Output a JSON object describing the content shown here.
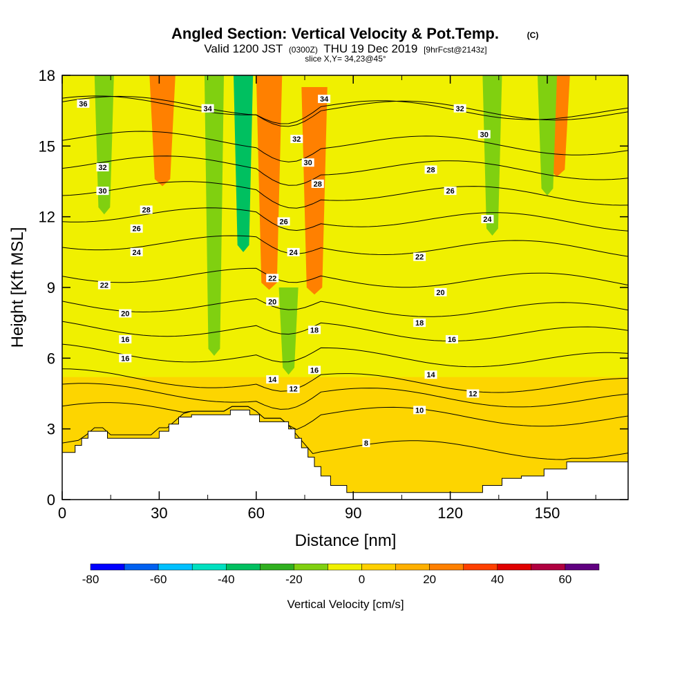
{
  "chart_data": {
    "type": "heatmap",
    "title": "Angled Section: Vertical Velocity & Pot.Temp.",
    "title_units": "(C)",
    "subtitle": {
      "prefix": "Valid 1200 JST",
      "utc": "(0300Z)",
      "date": "THU 19 Dec 2019",
      "forecast": "[9hrFcst@2143z]"
    },
    "slice_label": "slice X,Y= 34,23@45°",
    "xlabel": "Distance [nm]",
    "ylabel": "Height [Kft MSL]",
    "xlim": [
      0,
      175
    ],
    "ylim": [
      0,
      18
    ],
    "xticks": [
      0,
      30,
      60,
      90,
      120,
      150
    ],
    "yticks": [
      0,
      3,
      6,
      9,
      12,
      15,
      18
    ],
    "grid": false,
    "colorbar": {
      "label": "Vertical Velocity [cm/s]",
      "range": [
        -80,
        70
      ],
      "step": 10,
      "tick_values": [
        -80,
        -60,
        -40,
        -20,
        0,
        20,
        40,
        60
      ],
      "colors": [
        "#0000ff",
        "#0060f0",
        "#00c0ff",
        "#00e0c0",
        "#00c060",
        "#30b020",
        "#80d010",
        "#f0f000",
        "#ffd000",
        "#ffb000",
        "#ff8000",
        "#ff4000",
        "#e00000",
        "#b00040",
        "#600080"
      ]
    },
    "background_band": "0 to 10",
    "updraft_bands": [
      {
        "x": 31,
        "y_from": 13.6,
        "y_to": 18,
        "value": 25
      },
      {
        "x": 64,
        "y_from": 9.2,
        "y_to": 18,
        "value": 25
      },
      {
        "x": 78,
        "y_from": 9,
        "y_to": 17.5,
        "value": 20
      },
      {
        "x": 153,
        "y_from": 14,
        "y_to": 18,
        "value": 20
      }
    ],
    "downdraft_bands": [
      {
        "x": 13,
        "y_from": 12.4,
        "y_to": 18,
        "value": -15
      },
      {
        "x": 47,
        "y_from": 6.4,
        "y_to": 18,
        "value": -15
      },
      {
        "x": 56,
        "y_from": 10.8,
        "y_to": 18,
        "value": -35
      },
      {
        "x": 70,
        "y_from": 5.6,
        "y_to": 9,
        "value": -15
      },
      {
        "x": 133,
        "y_from": 11.5,
        "y_to": 18,
        "value": -15
      },
      {
        "x": 150,
        "y_from": 13.2,
        "y_to": 18,
        "value": -15
      }
    ],
    "terrain": [
      [
        0,
        2
      ],
      [
        4,
        2
      ],
      [
        4,
        2.3
      ],
      [
        6,
        2.3
      ],
      [
        6,
        2.6
      ],
      [
        8,
        2.6
      ],
      [
        8,
        2.9
      ],
      [
        14,
        2.9
      ],
      [
        14,
        2.6
      ],
      [
        30,
        2.6
      ],
      [
        30,
        2.9
      ],
      [
        33,
        2.9
      ],
      [
        33,
        3.2
      ],
      [
        36,
        3.2
      ],
      [
        36,
        3.5
      ],
      [
        40,
        3.5
      ],
      [
        40,
        3.6
      ],
      [
        52,
        3.6
      ],
      [
        52,
        3.8
      ],
      [
        58,
        3.8
      ],
      [
        58,
        3.6
      ],
      [
        61,
        3.6
      ],
      [
        61,
        3.3
      ],
      [
        70,
        3.3
      ],
      [
        70,
        3.0
      ],
      [
        72,
        3.0
      ],
      [
        72,
        2.6
      ],
      [
        74,
        2.6
      ],
      [
        74,
        2.2
      ],
      [
        76,
        2.2
      ],
      [
        76,
        1.8
      ],
      [
        78,
        1.8
      ],
      [
        78,
        1.4
      ],
      [
        80,
        1.4
      ],
      [
        80,
        1.0
      ],
      [
        83,
        1.0
      ],
      [
        83,
        0.6
      ],
      [
        88,
        0.6
      ],
      [
        88,
        0.3
      ],
      [
        130,
        0.3
      ],
      [
        130,
        0.6
      ],
      [
        136,
        0.6
      ],
      [
        136,
        0.9
      ],
      [
        142,
        0.9
      ],
      [
        142,
        1.0
      ],
      [
        149,
        1.0
      ],
      [
        149,
        1.3
      ],
      [
        156,
        1.3
      ],
      [
        156,
        1.6
      ],
      [
        175,
        1.6
      ]
    ],
    "contour_levels": [
      8,
      10,
      12,
      14,
      16,
      18,
      20,
      22,
      24,
      26,
      28,
      30,
      32,
      34,
      36
    ],
    "contour_labels": [
      {
        "text": "36",
        "x": 6.5,
        "y": 16.8
      },
      {
        "text": "34",
        "x": 45,
        "y": 16.6
      },
      {
        "text": "34",
        "x": 81,
        "y": 17
      },
      {
        "text": "32",
        "x": 12.5,
        "y": 14.1
      },
      {
        "text": "32",
        "x": 72.5,
        "y": 15.3
      },
      {
        "text": "32",
        "x": 123,
        "y": 16.6
      },
      {
        "text": "30",
        "x": 12.5,
        "y": 13.1
      },
      {
        "text": "30",
        "x": 76,
        "y": 14.3
      },
      {
        "text": "30",
        "x": 130.5,
        "y": 15.5
      },
      {
        "text": "28",
        "x": 26,
        "y": 12.3
      },
      {
        "text": "28",
        "x": 79,
        "y": 13.4
      },
      {
        "text": "28",
        "x": 114,
        "y": 14
      },
      {
        "text": "26",
        "x": 23,
        "y": 11.5
      },
      {
        "text": "26",
        "x": 68.5,
        "y": 11.8
      },
      {
        "text": "26",
        "x": 120,
        "y": 13.1
      },
      {
        "text": "24",
        "x": 23,
        "y": 10.5
      },
      {
        "text": "24",
        "x": 71.5,
        "y": 10.5
      },
      {
        "text": "24",
        "x": 131.5,
        "y": 11.9
      },
      {
        "text": "22",
        "x": 13,
        "y": 9.1
      },
      {
        "text": "22",
        "x": 65,
        "y": 9.4
      },
      {
        "text": "22",
        "x": 110.5,
        "y": 10.3
      },
      {
        "text": "20",
        "x": 19.5,
        "y": 7.9
      },
      {
        "text": "20",
        "x": 65,
        "y": 8.4
      },
      {
        "text": "20",
        "x": 117,
        "y": 8.8
      },
      {
        "text": "18",
        "x": 78,
        "y": 7.2
      },
      {
        "text": "18",
        "x": 110.5,
        "y": 7.5
      },
      {
        "text": "16",
        "x": 19.5,
        "y": 6.8
      },
      {
        "text": "16",
        "x": 19.5,
        "y": 6.0
      },
      {
        "text": "16",
        "x": 78,
        "y": 5.5
      },
      {
        "text": "16",
        "x": 120.5,
        "y": 6.8
      },
      {
        "text": "14",
        "x": 65,
        "y": 5.1
      },
      {
        "text": "14",
        "x": 114,
        "y": 5.3
      },
      {
        "text": "12",
        "x": 71.5,
        "y": 4.7
      },
      {
        "text": "12",
        "x": 127,
        "y": 4.5
      },
      {
        "text": "10",
        "x": 110.5,
        "y": 3.8
      },
      {
        "text": "8",
        "x": 94,
        "y": 2.4
      }
    ]
  }
}
